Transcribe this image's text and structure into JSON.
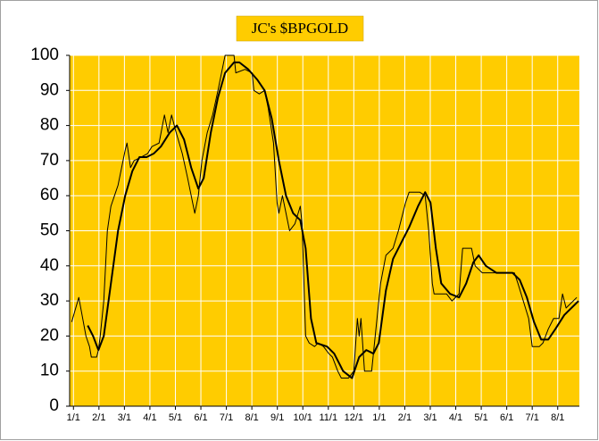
{
  "chart_data": {
    "type": "line",
    "title": "JC's $BPGOLD",
    "background": "#ffcc00",
    "grid": true,
    "grid_color": "#ffffff",
    "xlim": [
      -0.15,
      19.85
    ],
    "ylim": [
      0,
      100
    ],
    "yticks": [
      0,
      10,
      20,
      30,
      40,
      50,
      60,
      70,
      80,
      90,
      100
    ],
    "xticks": [
      {
        "value": 0,
        "label": "1/1"
      },
      {
        "value": 1,
        "label": "2/1"
      },
      {
        "value": 2,
        "label": "3/1"
      },
      {
        "value": 3,
        "label": "4/1"
      },
      {
        "value": 4,
        "label": "5/1"
      },
      {
        "value": 5,
        "label": "6/1"
      },
      {
        "value": 6,
        "label": "7/1"
      },
      {
        "value": 7,
        "label": "8/1"
      },
      {
        "value": 8,
        "label": "9/1"
      },
      {
        "value": 9,
        "label": "10/1"
      },
      {
        "value": 10,
        "label": "11/1"
      },
      {
        "value": 11,
        "label": "12/1"
      },
      {
        "value": 12,
        "label": "1/1"
      },
      {
        "value": 13,
        "label": "2/1"
      },
      {
        "value": 14,
        "label": "3/1"
      },
      {
        "value": 15,
        "label": "4/1"
      },
      {
        "value": 16,
        "label": "5/1"
      },
      {
        "value": 17,
        "label": "6/1"
      },
      {
        "value": 18,
        "label": "7/1"
      },
      {
        "value": 19,
        "label": "8/1"
      }
    ],
    "series": [
      {
        "color": "#000000",
        "line_width": 1,
        "x": [
          -0.07,
          0.21,
          0.49,
          0.63,
          0.7,
          0.91,
          0.98,
          1.05,
          1.19,
          1.33,
          1.47,
          1.61,
          1.75,
          2.03,
          2.1,
          2.24,
          2.38,
          2.66,
          2.91,
          3.08,
          3.36,
          3.57,
          3.71,
          3.85,
          3.99,
          4.27,
          4.48,
          4.62,
          4.76,
          4.9,
          5.04,
          5.25,
          5.46,
          5.67,
          5.81,
          5.95,
          6.3,
          6.37,
          6.73,
          7.01,
          7.08,
          7.29,
          7.5,
          7.64,
          7.85,
          7.99,
          8.06,
          8.2,
          8.34,
          8.48,
          8.69,
          8.9,
          8.97,
          9.11,
          9.25,
          9.46,
          9.6,
          9.81,
          10.02,
          10.16,
          10.37,
          10.51,
          10.79,
          11.0,
          11.14,
          11.21,
          11.28,
          11.42,
          11.7,
          11.84,
          12.05,
          12.26,
          12.54,
          12.75,
          13.03,
          13.17,
          13.59,
          13.8,
          13.94,
          14.08,
          14.15,
          14.64,
          14.85,
          15.13,
          15.27,
          15.62,
          15.76,
          16.04,
          17.3,
          17.44,
          17.65,
          17.86,
          18.0,
          18.28,
          18.42,
          18.63,
          18.84,
          19.05,
          19.19,
          19.33,
          19.75
        ],
        "values": [
          24,
          31,
          20,
          17,
          14,
          14,
          16,
          20,
          30,
          50,
          57,
          60,
          63,
          73,
          75,
          68,
          70,
          71,
          72,
          74,
          75,
          83,
          78,
          83,
          79,
          72,
          65,
          60,
          55,
          60,
          70,
          78,
          83,
          90,
          95,
          100,
          100,
          95,
          96,
          95,
          90,
          89,
          90,
          85,
          75,
          58,
          55,
          60,
          55,
          50,
          52,
          57,
          52,
          20,
          18,
          17,
          18,
          17,
          15,
          14,
          10,
          8,
          8,
          10,
          25,
          20,
          25,
          10,
          10,
          20,
          35,
          43,
          45,
          50,
          58,
          61,
          61,
          60,
          50,
          35,
          32,
          32,
          30,
          32,
          45,
          45,
          40,
          38,
          38,
          35,
          30,
          25,
          17,
          17,
          18,
          22,
          25,
          25,
          32,
          28,
          31
        ]
      },
      {
        "color": "#000000",
        "line_width": 2,
        "x": [
          0.56,
          0.77,
          0.98,
          1.19,
          1.47,
          1.75,
          2.03,
          2.31,
          2.59,
          2.87,
          3.15,
          3.43,
          3.78,
          4.06,
          4.34,
          4.62,
          4.9,
          5.11,
          5.39,
          5.67,
          5.95,
          6.3,
          6.51,
          6.86,
          7.22,
          7.5,
          7.78,
          8.06,
          8.34,
          8.62,
          8.9,
          9.11,
          9.32,
          9.53,
          9.95,
          10.23,
          10.58,
          10.93,
          11.21,
          11.49,
          11.77,
          11.98,
          12.26,
          12.54,
          12.82,
          13.17,
          13.52,
          13.8,
          14.01,
          14.22,
          14.43,
          14.78,
          15.13,
          15.41,
          15.69,
          15.9,
          16.18,
          16.6,
          17.23,
          17.51,
          17.79,
          18.07,
          18.35,
          18.63,
          18.91,
          19.26,
          19.82
        ],
        "values": [
          23,
          20,
          16,
          20,
          35,
          50,
          60,
          67,
          71,
          71,
          72,
          74,
          78,
          80,
          76,
          68,
          62,
          65,
          78,
          88,
          95,
          98,
          98,
          96,
          93,
          90,
          82,
          70,
          60,
          55,
          53,
          45,
          25,
          18,
          17,
          15,
          10,
          8,
          14,
          16,
          15,
          18,
          33,
          42,
          46,
          51,
          57,
          61,
          58,
          45,
          35,
          32,
          31,
          35,
          41,
          43,
          40,
          38,
          38,
          36,
          31,
          24,
          19,
          19,
          22,
          26,
          30
        ]
      }
    ]
  }
}
